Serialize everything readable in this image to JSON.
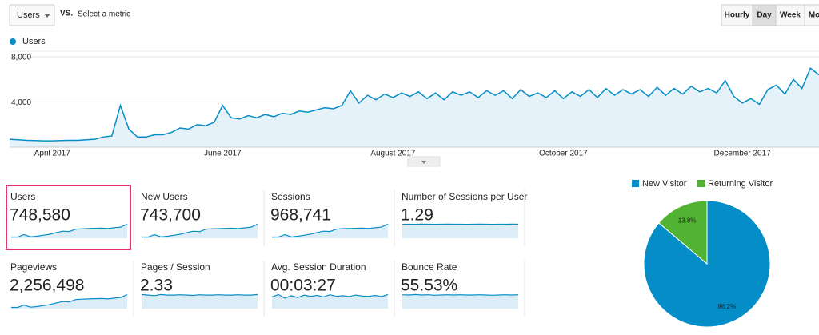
{
  "toolbar": {
    "metric_select": "Users",
    "vs": "VS.",
    "select_metric": "Select a metric",
    "granularity": [
      "Hourly",
      "Day",
      "Week",
      "Mo"
    ],
    "selected_index": 1
  },
  "chart_data": [
    {
      "type": "line",
      "categories": [
        null,
        null,
        null,
        null,
        null,
        "April 2017",
        null,
        null,
        null,
        null,
        null,
        null,
        null,
        null,
        null,
        null,
        null,
        null,
        null,
        null,
        null,
        null,
        null,
        null,
        null,
        "June 2017",
        null,
        null,
        null,
        null,
        null,
        null,
        null,
        null,
        null,
        null,
        null,
        null,
        null,
        null,
        null,
        null,
        null,
        null,
        null,
        "August 2017",
        null,
        null,
        null,
        null,
        null,
        null,
        null,
        null,
        null,
        null,
        null,
        null,
        null,
        null,
        null,
        null,
        null,
        null,
        null,
        "October 2017",
        null,
        null,
        null,
        null,
        null,
        null,
        null,
        null,
        null,
        null,
        null,
        null,
        null,
        null,
        null,
        null,
        null,
        null,
        null,
        null,
        "December 2017",
        null,
        null,
        null,
        null,
        null,
        null,
        null,
        null,
        null
      ],
      "series": [
        {
          "name": "Users",
          "color": "#058dc7",
          "values": [
            700,
            650,
            600,
            580,
            560,
            560,
            580,
            600,
            600,
            650,
            700,
            900,
            1000,
            3700,
            1600,
            900,
            900,
            1100,
            1100,
            1300,
            1700,
            1600,
            2000,
            1900,
            2200,
            3700,
            2600,
            2500,
            2800,
            2600,
            2900,
            2700,
            3000,
            2900,
            3200,
            3100,
            3300,
            3500,
            3400,
            3700,
            5000,
            3900,
            4600,
            4200,
            4700,
            4400,
            4800,
            4500,
            4900,
            4300,
            4800,
            4200,
            4900,
            4600,
            4900,
            4400,
            5000,
            4600,
            5000,
            4300,
            5100,
            4500,
            4800,
            4400,
            5000,
            4300,
            4900,
            4500,
            5100,
            4400,
            5200,
            4600,
            5100,
            4700,
            5100,
            4500,
            5300,
            4600,
            5200,
            4700,
            5400,
            4900,
            5200,
            4800,
            5900,
            4500,
            3900,
            4300,
            3800,
            5100,
            5500,
            4700,
            6000,
            5200,
            7000,
            6400
          ]
        }
      ],
      "ylim": [
        0,
        8500
      ],
      "yticks": [
        {
          "value": 4000,
          "label": "4,000"
        },
        {
          "value": 8000,
          "label": "8,000"
        }
      ],
      "grid": true
    },
    {
      "type": "pie",
      "categories": [
        "New Visitor",
        "Returning Visitor"
      ],
      "values": [
        86.2,
        13.8
      ],
      "value_labels": [
        "86.2%",
        "13.8%"
      ],
      "colors": [
        "#058dc7",
        "#50b432"
      ],
      "legend": "top"
    }
  ],
  "metrics": [
    {
      "name": "Users",
      "value": "748,580",
      "highlighted": true,
      "spark": [
        600,
        600,
        1800,
        700,
        1000,
        1500,
        2000,
        2800,
        3500,
        3300,
        4500,
        4700,
        4800,
        4900,
        5000,
        4800,
        5200,
        5500,
        7000
      ]
    },
    {
      "name": "New Users",
      "value": "743,700",
      "spark": [
        580,
        590,
        1750,
        680,
        980,
        1450,
        1950,
        2750,
        3400,
        3250,
        4400,
        4600,
        4700,
        4800,
        4900,
        4700,
        5100,
        5400,
        6900
      ]
    },
    {
      "name": "Sessions",
      "value": "968,741",
      "spark": [
        750,
        760,
        2300,
        880,
        1250,
        1900,
        2600,
        3600,
        4500,
        4300,
        5800,
        6100,
        6200,
        6300,
        6500,
        6200,
        6700,
        7100,
        9000
      ]
    },
    {
      "name": "Number of Sessions per User",
      "value": "1.29",
      "spark": [
        1.28,
        1.29,
        1.28,
        1.3,
        1.29,
        1.28,
        1.29,
        1.3,
        1.29,
        1.29,
        1.28,
        1.29,
        1.3,
        1.29,
        1.28,
        1.29,
        1.29,
        1.3,
        1.29
      ]
    },
    {
      "name": "Pageviews",
      "value": "2,256,498",
      "spark": [
        1800,
        1800,
        5200,
        2100,
        3000,
        4500,
        6000,
        8400,
        10500,
        9900,
        13500,
        14100,
        14400,
        14700,
        15000,
        14400,
        15600,
        16500,
        21000
      ]
    },
    {
      "name": "Pages / Session",
      "value": "2.33",
      "spark": [
        2.4,
        2.3,
        2.2,
        2.4,
        2.3,
        2.3,
        2.35,
        2.3,
        2.25,
        2.35,
        2.3,
        2.3,
        2.35,
        2.3,
        2.3,
        2.35,
        2.3,
        2.3,
        2.4
      ]
    },
    {
      "name": "Avg. Session Duration",
      "value": "00:03:27",
      "spark": [
        190,
        230,
        170,
        210,
        180,
        220,
        200,
        215,
        190,
        225,
        200,
        210,
        195,
        220,
        205,
        200,
        215,
        195,
        230
      ]
    },
    {
      "name": "Bounce Rate",
      "value": "55.53%",
      "spark": [
        56,
        55,
        57,
        55,
        56,
        54,
        55,
        56,
        55,
        56,
        55,
        55,
        56,
        55,
        54,
        55,
        56,
        55,
        56
      ]
    }
  ]
}
